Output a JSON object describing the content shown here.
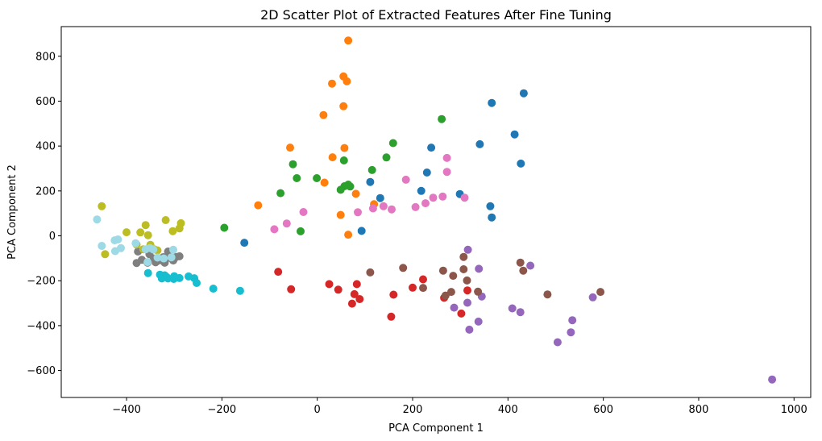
{
  "chart_data": {
    "type": "scatter",
    "title": "2D Scatter Plot of Extracted Features After Fine Tuning",
    "xlabel": "PCA Component 1",
    "ylabel": "PCA Component 2",
    "xlim": [
      -537,
      1035
    ],
    "ylim": [
      -720,
      932
    ],
    "xticks": [
      -400,
      -200,
      0,
      200,
      400,
      600,
      800,
      1000
    ],
    "yticks": [
      -600,
      -400,
      -200,
      0,
      200,
      400,
      600,
      800
    ],
    "grid": false,
    "legend": "none",
    "series": [
      {
        "color": "#1f77b4",
        "points": [
          [
            433,
            635
          ],
          [
            366,
            592
          ],
          [
            414,
            452
          ],
          [
            341,
            408
          ],
          [
            427,
            322
          ],
          [
            239,
            393
          ],
          [
            230,
            282
          ],
          [
            218,
            200
          ],
          [
            299,
            186
          ],
          [
            363,
            132
          ],
          [
            366,
            82
          ],
          [
            111,
            240
          ],
          [
            132,
            168
          ],
          [
            93,
            22
          ],
          [
            -153,
            -31
          ]
        ]
      },
      {
        "color": "#ff7f0e",
        "points": [
          [
            65,
            870
          ],
          [
            55,
            710
          ],
          [
            62,
            688
          ],
          [
            31,
            678
          ],
          [
            55,
            577
          ],
          [
            13,
            538
          ],
          [
            -57,
            393
          ],
          [
            57,
            391
          ],
          [
            32,
            350
          ],
          [
            15,
            237
          ],
          [
            -124,
            136
          ],
          [
            81,
            187
          ],
          [
            119,
            141
          ],
          [
            49,
            93
          ],
          [
            65,
            5
          ]
        ]
      },
      {
        "color": "#2ca02c",
        "points": [
          [
            261,
            520
          ],
          [
            159,
            413
          ],
          [
            145,
            349
          ],
          [
            -51,
            319
          ],
          [
            56,
            336
          ],
          [
            115,
            293
          ],
          [
            -43,
            257
          ],
          [
            -1,
            257
          ],
          [
            57,
            221
          ],
          [
            65,
            228
          ],
          [
            49,
            205
          ],
          [
            69,
            220
          ],
          [
            -77,
            190
          ],
          [
            -195,
            36
          ],
          [
            -35,
            20
          ]
        ]
      },
      {
        "color": "#d62728",
        "points": [
          [
            -82,
            -160
          ],
          [
            -55,
            -238
          ],
          [
            25,
            -215
          ],
          [
            44,
            -240
          ],
          [
            83,
            -215
          ],
          [
            78,
            -260
          ],
          [
            89,
            -282
          ],
          [
            73,
            -302
          ],
          [
            160,
            -262
          ],
          [
            155,
            -360
          ],
          [
            200,
            -231
          ],
          [
            222,
            -194
          ],
          [
            266,
            -276
          ],
          [
            302,
            -346
          ],
          [
            315,
            -243
          ]
        ]
      },
      {
        "color": "#9467bd",
        "points": [
          [
            316,
            -62
          ],
          [
            447,
            -133
          ],
          [
            339,
            -147
          ],
          [
            345,
            -270
          ],
          [
            287,
            -320
          ],
          [
            315,
            -298
          ],
          [
            319,
            -418
          ],
          [
            338,
            -382
          ],
          [
            409,
            -323
          ],
          [
            426,
            -340
          ],
          [
            504,
            -474
          ],
          [
            535,
            -376
          ],
          [
            532,
            -430
          ],
          [
            578,
            -274
          ],
          [
            954,
            -640
          ]
        ]
      },
      {
        "color": "#8c564b",
        "points": [
          [
            180,
            -143
          ],
          [
            111,
            -163
          ],
          [
            222,
            -232
          ],
          [
            264,
            -155
          ],
          [
            285,
            -178
          ],
          [
            281,
            -250
          ],
          [
            269,
            -266
          ],
          [
            307,
            -94
          ],
          [
            307,
            -149
          ],
          [
            314,
            -199
          ],
          [
            337,
            -249
          ],
          [
            426,
            -119
          ],
          [
            432,
            -155
          ],
          [
            483,
            -261
          ],
          [
            594,
            -250
          ]
        ]
      },
      {
        "color": "#e377c2",
        "points": [
          [
            272,
            347
          ],
          [
            272,
            285
          ],
          [
            186,
            250
          ],
          [
            243,
            170
          ],
          [
            263,
            175
          ],
          [
            309,
            170
          ],
          [
            227,
            145
          ],
          [
            206,
            128
          ],
          [
            117,
            122
          ],
          [
            85,
            105
          ],
          [
            139,
            132
          ],
          [
            156,
            118
          ],
          [
            -64,
            55
          ],
          [
            -90,
            29
          ],
          [
            -29,
            106
          ]
        ]
      },
      {
        "color": "#7f7f7f",
        "points": [
          [
            -379,
            -121
          ],
          [
            -368,
            -107
          ],
          [
            -352,
            -82
          ],
          [
            -343,
            -101
          ],
          [
            -331,
            -109
          ],
          [
            -323,
            -95
          ],
          [
            -313,
            -70
          ],
          [
            -302,
            -110
          ],
          [
            -296,
            -94
          ],
          [
            -289,
            -91
          ],
          [
            -376,
            -70
          ],
          [
            -356,
            -120
          ],
          [
            -339,
            -118
          ],
          [
            -310,
            -98
          ],
          [
            -320,
            -120
          ]
        ]
      },
      {
        "color": "#bcbd22",
        "points": [
          [
            -452,
            132
          ],
          [
            -445,
            -82
          ],
          [
            -400,
            16
          ],
          [
            -379,
            -39
          ],
          [
            -360,
            48
          ],
          [
            -355,
            3
          ],
          [
            -350,
            -40
          ],
          [
            -342,
            -60
          ],
          [
            -318,
            70
          ],
          [
            -303,
            21
          ],
          [
            -286,
            56
          ],
          [
            -289,
            33
          ],
          [
            -371,
            15
          ],
          [
            -335,
            -65
          ],
          [
            -365,
            -60
          ]
        ]
      },
      {
        "color": "#17becf",
        "points": [
          [
            -355,
            -166
          ],
          [
            -330,
            -173
          ],
          [
            -320,
            -176
          ],
          [
            -326,
            -190
          ],
          [
            -316,
            -183
          ],
          [
            -300,
            -180
          ],
          [
            -301,
            -192
          ],
          [
            -289,
            -188
          ],
          [
            -270,
            -181
          ],
          [
            -258,
            -189
          ],
          [
            -253,
            -210
          ],
          [
            -218,
            -235
          ],
          [
            -162,
            -245
          ],
          [
            -326,
            -178
          ],
          [
            -313,
            -190
          ]
        ]
      },
      {
        "color": "#9edae5",
        "points": [
          [
            -462,
            73
          ],
          [
            -452,
            -45
          ],
          [
            -425,
            -20
          ],
          [
            -418,
            -16
          ],
          [
            -412,
            -55
          ],
          [
            -424,
            -68
          ],
          [
            -381,
            -33
          ],
          [
            -360,
            -60
          ],
          [
            -351,
            -54
          ],
          [
            -344,
            -61
          ],
          [
            -356,
            -117
          ],
          [
            -335,
            -97
          ],
          [
            -322,
            -101
          ],
          [
            -302,
            -62
          ],
          [
            -306,
            -96
          ]
        ]
      }
    ]
  }
}
